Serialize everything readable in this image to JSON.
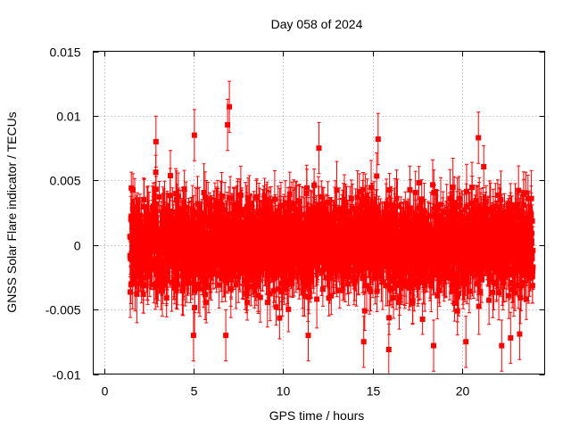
{
  "chart_data": {
    "type": "scatter",
    "title": "Day 058 of 2024",
    "xlabel": "GPS time / hours",
    "ylabel": "GNSS Solar Flare indicator / TECUs",
    "xlim": [
      -0.6,
      24.6
    ],
    "ylim": [
      -0.01,
      0.015
    ],
    "x_ticks": [
      0,
      5,
      10,
      15,
      20
    ],
    "x_tick_labels": [
      "0",
      "5",
      "10",
      "15",
      "20"
    ],
    "y_ticks": [
      -0.01,
      -0.005,
      0,
      0.005,
      0.01,
      0.015
    ],
    "y_tick_labels": [
      "-0.01",
      "-0.005",
      "0",
      "0.005",
      "0.01",
      "0.015"
    ],
    "grid": true,
    "series": [
      {
        "name": "solar flare indicator",
        "color": "#ff0000",
        "marker": "square",
        "error_bars": true,
        "x_start": 1.45,
        "x_end": 23.95,
        "n_points": 2700,
        "mean": 0.0,
        "spread": 0.0017,
        "typical_error": 0.0018,
        "extremes": [
          {
            "x": 7.0,
            "y": 0.0107
          },
          {
            "x": 6.9,
            "y": 0.0093
          },
          {
            "x": 5.05,
            "y": 0.0085
          },
          {
            "x": 2.9,
            "y": 0.008
          },
          {
            "x": 15.3,
            "y": 0.0082
          },
          {
            "x": 20.9,
            "y": 0.0083
          },
          {
            "x": 12.0,
            "y": 0.0075
          },
          {
            "x": 5.0,
            "y": -0.007
          },
          {
            "x": 11.4,
            "y": -0.007
          },
          {
            "x": 14.5,
            "y": -0.0075
          },
          {
            "x": 15.9,
            "y": -0.0081
          },
          {
            "x": 18.4,
            "y": -0.0078
          },
          {
            "x": 20.2,
            "y": -0.0075
          },
          {
            "x": 22.2,
            "y": -0.0078
          },
          {
            "x": 22.7,
            "y": -0.0072
          },
          {
            "x": 23.2,
            "y": -0.0069
          },
          {
            "x": 6.8,
            "y": -0.007
          }
        ]
      }
    ]
  }
}
